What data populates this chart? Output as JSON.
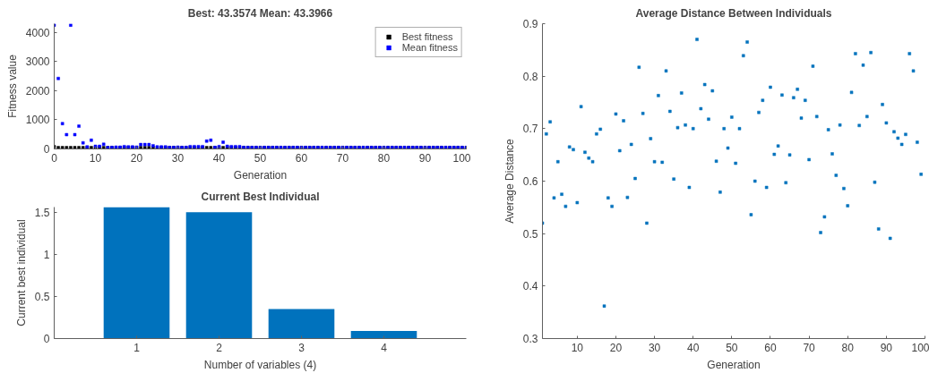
{
  "chart_data": [
    {
      "type": "scatter",
      "title": "Best: 43.3574 Mean: 43.3966",
      "xlabel": "Generation",
      "ylabel": "Fitness value",
      "xlim": [
        0,
        100
      ],
      "ylim": [
        0,
        4300
      ],
      "xticks": [
        0,
        10,
        20,
        30,
        40,
        50,
        60,
        70,
        80,
        90,
        100
      ],
      "yticks": [
        0,
        1000,
        2000,
        3000,
        4000
      ],
      "legend": "top right",
      "marker": "square",
      "grid": false,
      "x": [
        0,
        1,
        2,
        3,
        4,
        5,
        6,
        7,
        8,
        9,
        10,
        11,
        12,
        13,
        14,
        15,
        16,
        17,
        18,
        19,
        20,
        21,
        22,
        23,
        24,
        25,
        26,
        27,
        28,
        29,
        30,
        31,
        32,
        33,
        34,
        35,
        36,
        37,
        38,
        39,
        40,
        41,
        42,
        43,
        44,
        45,
        46,
        47,
        48,
        49,
        50,
        51,
        52,
        53,
        54,
        55,
        56,
        57,
        58,
        59,
        60,
        61,
        62,
        63,
        64,
        65,
        66,
        67,
        68,
        69,
        70,
        71,
        72,
        73,
        74,
        75,
        76,
        77,
        78,
        79,
        80,
        81,
        82,
        83,
        84,
        85,
        86,
        87,
        88,
        89,
        90,
        91,
        92,
        93,
        94,
        95,
        96,
        97,
        98,
        99,
        100
      ],
      "series": [
        {
          "name": "Best fitness",
          "color": "#000000",
          "values": [
            80,
            43,
            43,
            43,
            43,
            43,
            43,
            43,
            43,
            43,
            43,
            43,
            43,
            43,
            43,
            43,
            43,
            43,
            43,
            43,
            43,
            43,
            43,
            43,
            43,
            43,
            43,
            43,
            43,
            43,
            43,
            43,
            43,
            43,
            43,
            43,
            43,
            43,
            43,
            43,
            43,
            43,
            43,
            43,
            43,
            43,
            43,
            43,
            43,
            43,
            43,
            43,
            43,
            43,
            43,
            43,
            43,
            43,
            43,
            43,
            43,
            43,
            43,
            43,
            43,
            43,
            43,
            43,
            43,
            43,
            43,
            43,
            43,
            43,
            43,
            43,
            43,
            43,
            43,
            43,
            43,
            43,
            43,
            43,
            43,
            43,
            43,
            43,
            43,
            43,
            43,
            43,
            43,
            43,
            43,
            43,
            43,
            43,
            43,
            43,
            43
          ]
        },
        {
          "name": "Mean fitness",
          "color": "#0000ff",
          "values": [
            4250,
            2420,
            870,
            490,
            4250,
            490,
            780,
            210,
            70,
            300,
            90,
            90,
            160,
            45,
            50,
            60,
            60,
            80,
            70,
            70,
            60,
            150,
            150,
            150,
            110,
            70,
            70,
            70,
            50,
            50,
            60,
            50,
            50,
            80,
            80,
            80,
            80,
            270,
            300,
            50,
            80,
            230,
            90,
            80,
            80,
            80,
            50,
            50,
            50,
            50,
            50,
            50,
            50,
            50,
            50,
            50,
            50,
            50,
            50,
            50,
            50,
            50,
            50,
            50,
            50,
            50,
            50,
            50,
            50,
            50,
            50,
            50,
            50,
            50,
            50,
            50,
            50,
            50,
            50,
            50,
            50,
            50,
            50,
            50,
            50,
            50,
            50,
            50,
            50,
            50,
            50,
            50,
            50,
            50,
            50,
            50,
            50,
            50,
            50,
            50,
            50
          ]
        }
      ]
    },
    {
      "type": "bar",
      "title": "Current Best Individual",
      "xlabel": "Number of variables (4)",
      "ylabel": "Current best individual",
      "categories": [
        "1",
        "2",
        "3",
        "4"
      ],
      "values": [
        1.56,
        1.5,
        0.35,
        0.09
      ],
      "color": "#0072bd",
      "ylim": [
        0,
        1.56
      ],
      "yticks": [
        0,
        0.5,
        1,
        1.5
      ],
      "grid": false
    },
    {
      "type": "scatter",
      "title": "Average Distance Between Individuals",
      "xlabel": "Generation",
      "ylabel": "Average Distance",
      "xlim": [
        1,
        100
      ],
      "ylim": [
        0.3,
        0.9
      ],
      "xticks": [
        10,
        20,
        30,
        40,
        50,
        60,
        70,
        80,
        90,
        100
      ],
      "yticks": [
        0.3,
        0.4,
        0.5,
        0.6,
        0.7,
        0.8,
        0.9
      ],
      "marker": "square",
      "grid": false,
      "color": "#0072bd",
      "x": [
        1,
        2,
        3,
        4,
        5,
        6,
        7,
        8,
        9,
        10,
        11,
        12,
        13,
        14,
        15,
        16,
        17,
        18,
        19,
        20,
        21,
        22,
        23,
        24,
        25,
        26,
        27,
        28,
        29,
        30,
        31,
        32,
        33,
        34,
        35,
        36,
        37,
        38,
        39,
        40,
        41,
        42,
        43,
        44,
        45,
        46,
        47,
        48,
        49,
        50,
        51,
        52,
        53,
        54,
        55,
        56,
        57,
        58,
        59,
        60,
        61,
        62,
        63,
        64,
        65,
        66,
        67,
        68,
        69,
        70,
        71,
        72,
        73,
        74,
        75,
        76,
        77,
        78,
        79,
        80,
        81,
        82,
        83,
        84,
        85,
        86,
        87,
        88,
        89,
        90,
        91,
        92,
        93,
        94,
        95,
        96,
        97,
        98,
        99
      ],
      "values": [
        0.52,
        0.69,
        0.713,
        0.568,
        0.637,
        0.575,
        0.552,
        0.665,
        0.66,
        0.559,
        0.742,
        0.655,
        0.644,
        0.637,
        0.69,
        0.699,
        0.362,
        0.568,
        0.552,
        0.728,
        0.658,
        0.715,
        0.569,
        0.67,
        0.605,
        0.817,
        0.729,
        0.52,
        0.681,
        0.637,
        0.763,
        0.636,
        0.81,
        0.733,
        0.604,
        0.702,
        0.768,
        0.707,
        0.588,
        0.7,
        0.87,
        0.738,
        0.784,
        0.718,
        0.772,
        0.638,
        0.579,
        0.7,
        0.663,
        0.722,
        0.634,
        0.7,
        0.839,
        0.865,
        0.536,
        0.6,
        0.731,
        0.754,
        0.588,
        0.779,
        0.651,
        0.667,
        0.764,
        0.597,
        0.65,
        0.759,
        0.775,
        0.72,
        0.754,
        0.641,
        0.819,
        0.723,
        0.502,
        0.532,
        0.698,
        0.652,
        0.611,
        0.707,
        0.586,
        0.553,
        0.769,
        0.843,
        0.706,
        0.821,
        0.723,
        0.845,
        0.598,
        0.509,
        0.746,
        0.711,
        0.491,
        0.694,
        0.682,
        0.67,
        0.689,
        0.843,
        0.81,
        0.674,
        0.613
      ]
    }
  ]
}
